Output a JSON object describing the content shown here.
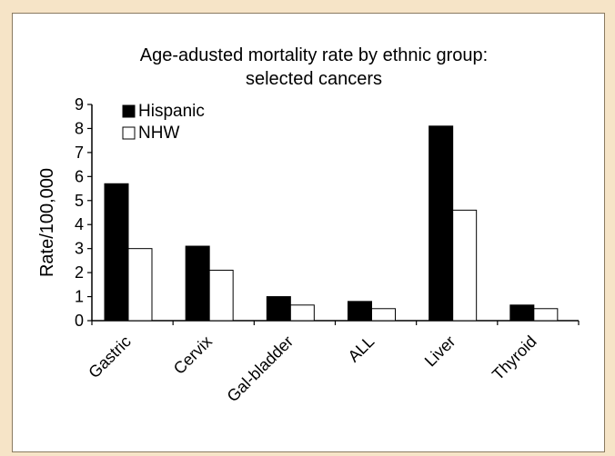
{
  "chart_data": {
    "type": "bar",
    "title": "Age-adusted mortality rate by ethnic group:",
    "subtitle": "selected cancers",
    "xlabel": "",
    "ylabel": "Rate/100,000",
    "ylim": [
      0,
      9
    ],
    "yticks": [
      "0",
      "1",
      "2",
      "3",
      "4",
      "5",
      "6",
      "7",
      "8",
      "9"
    ],
    "grid": false,
    "legend_position": "top-left",
    "categories": [
      "Gastric",
      "Cervix",
      "Gal-bladder",
      "ALL",
      "Liver",
      "Thyroid"
    ],
    "series": [
      {
        "name": "Hispanic",
        "color": "#000000",
        "values": [
          5.7,
          3.1,
          1.0,
          0.8,
          8.1,
          0.65
        ]
      },
      {
        "name": "NHW",
        "color": "#ffffff",
        "values": [
          3.0,
          2.1,
          0.65,
          0.5,
          4.6,
          0.5
        ]
      }
    ]
  },
  "colors": {
    "page_background": "#f6e4c7",
    "panel_background": "#ffffff"
  }
}
